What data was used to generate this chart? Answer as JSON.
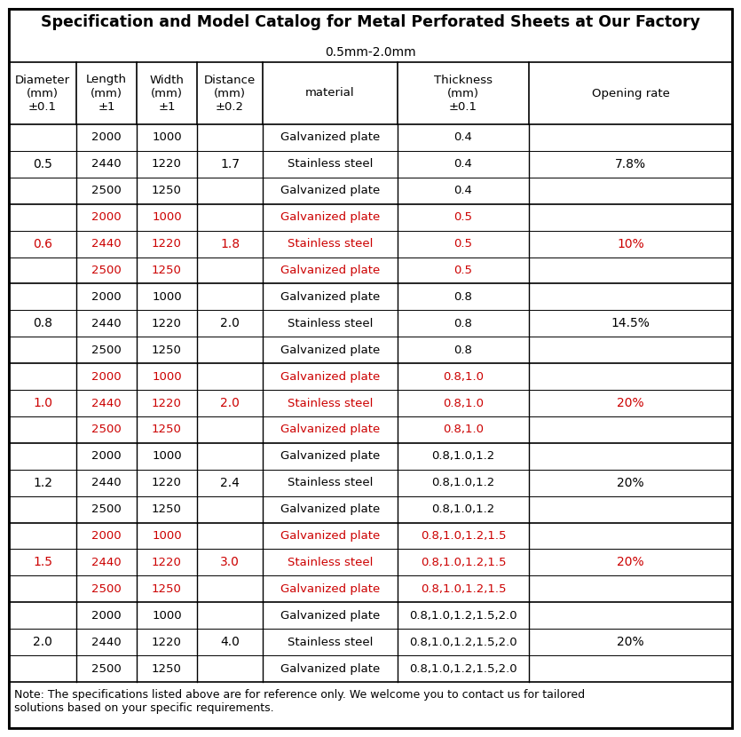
{
  "title": "Specification and Model Catalog for Metal Perforated Sheets at Our Factory",
  "subtitle": "0.5mm-2.0mm",
  "note": "Note: The specifications listed above are for reference only. We welcome you to contact us for tailored\nsolutions based on your specific requirements.",
  "header_labels": [
    "Diameter\n(mm)\n±0.1",
    "Length\n(mm)\n±1",
    "Width\n(mm)\n±1",
    "Distance\n(mm)\n±0.2",
    "material",
    "Thickness\n(mm)\n±0.1",
    "Opening rate"
  ],
  "rows": [
    {
      "diameter": "0.5",
      "red": false,
      "distance": "1.7",
      "opening_rate": "7.8%",
      "sub": [
        {
          "length": "2000",
          "width": "1000",
          "material": "Galvanized plate",
          "thickness": "0.4"
        },
        {
          "length": "2440",
          "width": "1220",
          "material": "Stainless steel",
          "thickness": "0.4"
        },
        {
          "length": "2500",
          "width": "1250",
          "material": "Galvanized plate",
          "thickness": "0.4"
        }
      ]
    },
    {
      "diameter": "0.6",
      "red": true,
      "distance": "1.8",
      "opening_rate": "10%",
      "sub": [
        {
          "length": "2000",
          "width": "1000",
          "material": "Galvanized plate",
          "thickness": "0.5"
        },
        {
          "length": "2440",
          "width": "1220",
          "material": "Stainless steel",
          "thickness": "0.5"
        },
        {
          "length": "2500",
          "width": "1250",
          "material": "Galvanized plate",
          "thickness": "0.5"
        }
      ]
    },
    {
      "diameter": "0.8",
      "red": false,
      "distance": "2.0",
      "opening_rate": "14.5%",
      "sub": [
        {
          "length": "2000",
          "width": "1000",
          "material": "Galvanized plate",
          "thickness": "0.8"
        },
        {
          "length": "2440",
          "width": "1220",
          "material": "Stainless steel",
          "thickness": "0.8"
        },
        {
          "length": "2500",
          "width": "1250",
          "material": "Galvanized plate",
          "thickness": "0.8"
        }
      ]
    },
    {
      "diameter": "1.0",
      "red": true,
      "distance": "2.0",
      "opening_rate": "20%",
      "sub": [
        {
          "length": "2000",
          "width": "1000",
          "material": "Galvanized plate",
          "thickness": "0.8,1.0"
        },
        {
          "length": "2440",
          "width": "1220",
          "material": "Stainless steel",
          "thickness": "0.8,1.0"
        },
        {
          "length": "2500",
          "width": "1250",
          "material": "Galvanized plate",
          "thickness": "0.8,1.0"
        }
      ]
    },
    {
      "diameter": "1.2",
      "red": false,
      "distance": "2.4",
      "opening_rate": "20%",
      "sub": [
        {
          "length": "2000",
          "width": "1000",
          "material": "Galvanized plate",
          "thickness": "0.8,1.0,1.2"
        },
        {
          "length": "2440",
          "width": "1220",
          "material": "Stainless steel",
          "thickness": "0.8,1.0,1.2"
        },
        {
          "length": "2500",
          "width": "1250",
          "material": "Galvanized plate",
          "thickness": "0.8,1.0,1.2"
        }
      ]
    },
    {
      "diameter": "1.5",
      "red": true,
      "distance": "3.0",
      "opening_rate": "20%",
      "sub": [
        {
          "length": "2000",
          "width": "1000",
          "material": "Galvanized plate",
          "thickness": "0.8,1.0,1.2,1.5"
        },
        {
          "length": "2440",
          "width": "1220",
          "material": "Stainless steel",
          "thickness": "0.8,1.0,1.2,1.5"
        },
        {
          "length": "2500",
          "width": "1250",
          "material": "Galvanized plate",
          "thickness": "0.8,1.0,1.2,1.5"
        }
      ]
    },
    {
      "diameter": "2.0",
      "red": false,
      "distance": "4.0",
      "opening_rate": "20%",
      "sub": [
        {
          "length": "2000",
          "width": "1000",
          "material": "Galvanized plate",
          "thickness": "0.8,1.0,1.2,1.5,2.0"
        },
        {
          "length": "2440",
          "width": "1220",
          "material": "Stainless steel",
          "thickness": "0.8,1.0,1.2,1.5,2.0"
        },
        {
          "length": "2500",
          "width": "1250",
          "material": "Galvanized plate",
          "thickness": "0.8,1.0,1.2,1.5,2.0"
        }
      ]
    }
  ],
  "black": "#000000",
  "red": "#cc0000",
  "figw": 8.35,
  "figh": 8.3,
  "dpi": 100
}
